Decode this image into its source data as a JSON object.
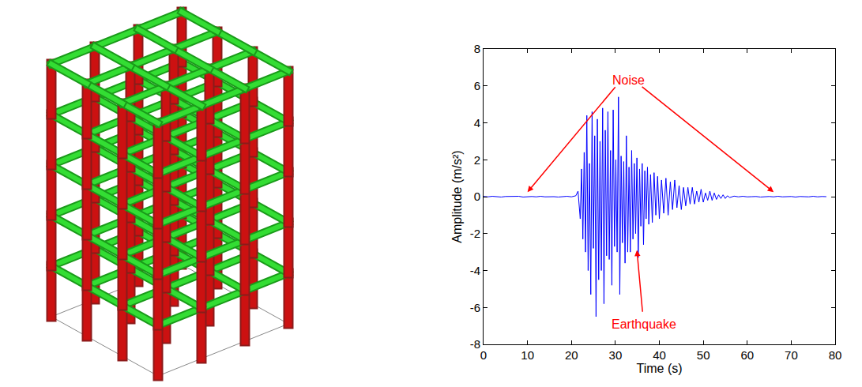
{
  "chart_data": {
    "type": "line",
    "xlabel": "Time (s)",
    "ylabel": "Amplitude (m/s²)",
    "color": "#0000ff",
    "xlim": [
      0,
      80
    ],
    "ylim": [
      -8,
      8
    ],
    "xticks": [
      0,
      10,
      20,
      30,
      40,
      50,
      60,
      70,
      80
    ],
    "yticks": [
      -8,
      -6,
      -4,
      -2,
      0,
      2,
      4,
      6,
      8
    ],
    "grid": false,
    "x": [
      0,
      1,
      2,
      3,
      4,
      5,
      6,
      7,
      8,
      9,
      10,
      11,
      12,
      13,
      14,
      15,
      16,
      17,
      18,
      19,
      20,
      21,
      21.5,
      22,
      22.3,
      22.6,
      22.9,
      23.2,
      23.5,
      23.8,
      24.1,
      24.4,
      24.7,
      25,
      25.3,
      25.6,
      25.9,
      26.2,
      26.5,
      26.8,
      27.1,
      27.4,
      27.7,
      28,
      28.3,
      28.6,
      28.9,
      29.2,
      29.5,
      29.8,
      30.1,
      30.4,
      30.7,
      31,
      31.3,
      31.6,
      31.9,
      32.2,
      32.5,
      32.8,
      33.1,
      33.4,
      33.7,
      34,
      34.3,
      34.6,
      34.9,
      35.2,
      35.5,
      35.8,
      36.1,
      36.4,
      36.7,
      37,
      37.3,
      37.6,
      38,
      38.4,
      38.8,
      39.2,
      39.6,
      40,
      40.5,
      41,
      41.5,
      42,
      42.5,
      43,
      43.5,
      44,
      44.5,
      45,
      45.5,
      46,
      46.5,
      47,
      47.5,
      48,
      48.5,
      49,
      49.5,
      50,
      50.5,
      51,
      51.5,
      52,
      52.5,
      53,
      53.5,
      54,
      54.5,
      55,
      55.5,
      56,
      57,
      58,
      59,
      60,
      61,
      62,
      63,
      64,
      65,
      66,
      67,
      68,
      69,
      70,
      71,
      72,
      73,
      74,
      75,
      76,
      77,
      78
    ],
    "values": [
      0.01,
      -0.01,
      0.02,
      0,
      -0.02,
      0.01,
      0.01,
      -0.01,
      0.02,
      -0.02,
      0,
      0.01,
      -0.01,
      0.02,
      -0.01,
      0.01,
      0,
      -0.02,
      0.01,
      0.02,
      -0.01,
      0.05,
      0.3,
      -1.2,
      1.5,
      -2.3,
      2.4,
      -3.0,
      4.4,
      -4.0,
      1.8,
      -5.3,
      4.6,
      -2.8,
      3.3,
      -6.5,
      4.2,
      -4.5,
      3.0,
      -4.0,
      4.8,
      -5.8,
      3.6,
      -3.2,
      4.6,
      -3.4,
      2.5,
      -4.8,
      4.7,
      -2.7,
      2.0,
      -3.0,
      5.4,
      -5.3,
      2.2,
      -2.5,
      1.9,
      -3.6,
      3.3,
      -3.0,
      1.6,
      -3.0,
      2.5,
      -2.3,
      1.8,
      -2.0,
      2.1,
      -3.3,
      1.5,
      -1.6,
      1.8,
      -2.6,
      1.4,
      -1.2,
      1.6,
      -1.5,
      1.2,
      -1.4,
      1.3,
      -1.0,
      1.1,
      -1.2,
      0.9,
      -0.9,
      1.0,
      -1.0,
      0.8,
      -0.7,
      0.9,
      -0.6,
      0.6,
      -0.7,
      0.5,
      -0.5,
      0.5,
      -0.4,
      0.5,
      -0.4,
      0.3,
      -0.3,
      0.4,
      -0.3,
      0.2,
      -0.2,
      0.3,
      -0.2,
      0.2,
      -0.15,
      0.1,
      -0.1,
      0.1,
      -0.1,
      0.05,
      -0.05,
      0.03,
      -0.01,
      0.02,
      -0.01,
      0,
      0.01,
      -0.02,
      0.01,
      0.01,
      -0.01,
      0.02,
      -0.01,
      0,
      0.01,
      -0.02,
      0.01,
      0,
      -0.01,
      0.02,
      -0.01,
      0.01,
      0
    ],
    "annotations": [
      {
        "text": "Noise",
        "x": 33,
        "y": 6.3,
        "arrows": [
          {
            "from": [
              30.2,
              6.0
            ],
            "to": [
              10,
              0.25
            ]
          },
          {
            "from": [
              35.8,
              6.0
            ],
            "to": [
              66,
              0.25
            ]
          }
        ]
      },
      {
        "text": "Earthquake",
        "x": 36.5,
        "y": -6.9,
        "arrows": [
          {
            "from": [
              36.2,
              -6.3
            ],
            "to": [
              34.9,
              -2.9
            ]
          }
        ]
      }
    ]
  }
}
